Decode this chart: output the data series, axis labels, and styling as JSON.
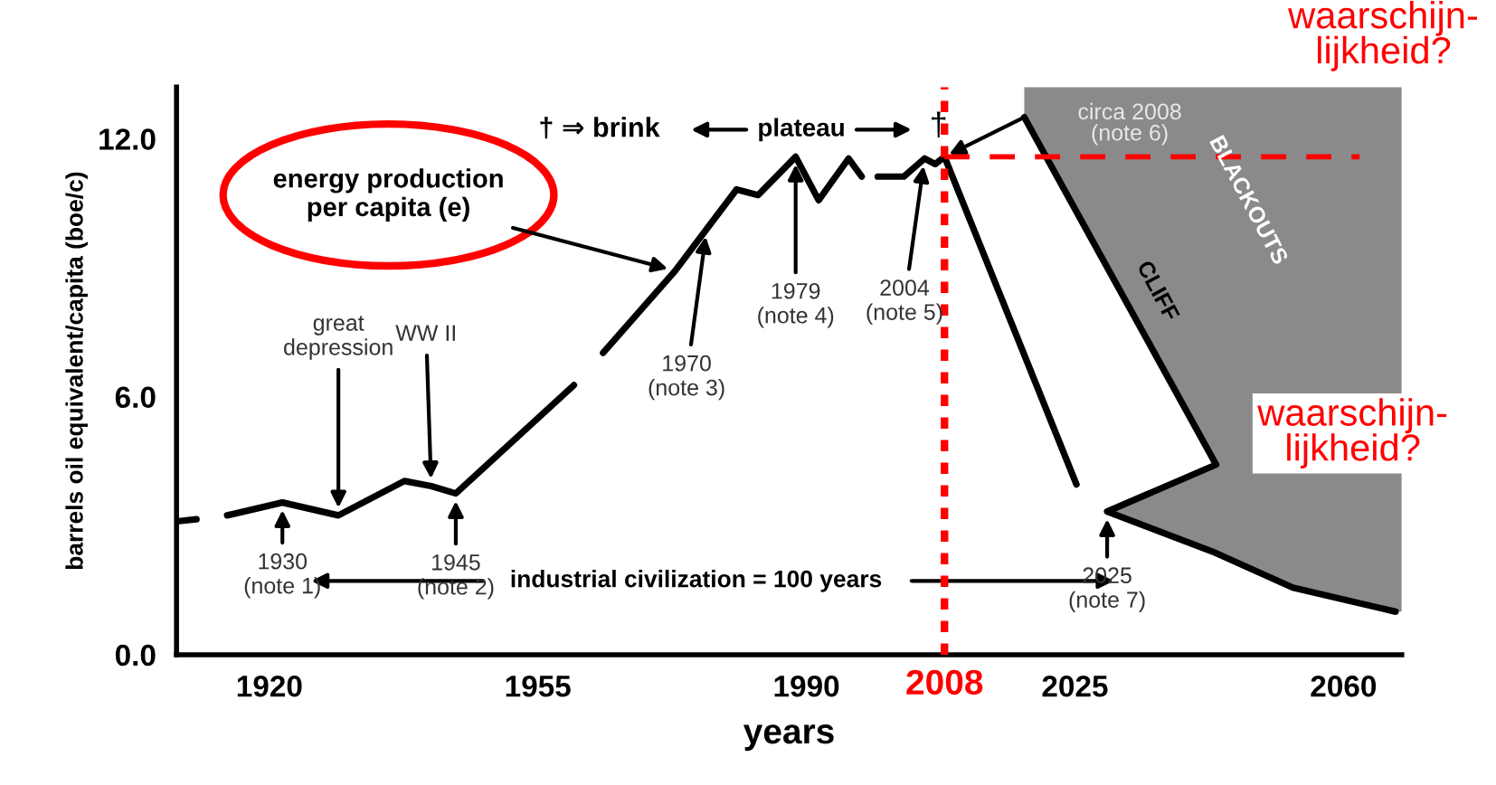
{
  "chart_data": {
    "type": "line",
    "xlabel": "years",
    "ylabel": "barrels oil equivalent/capita (boe/c)",
    "xlim": [
      1907.9,
      2067.6
    ],
    "ylim": [
      0,
      13.2
    ],
    "xticks": [
      1920,
      1955,
      1990,
      2025,
      2060
    ],
    "yticks": [
      {
        "value": 0,
        "label": "0.0"
      },
      {
        "value": 6,
        "label": "6.0"
      },
      {
        "value": 12,
        "label": "12.0"
      }
    ],
    "series": [
      {
        "color": "#000000",
        "x": [
          1907.9,
          1910.5,
          1911.5,
          1914.5,
          1921.7,
          1929.0,
          1937.6,
          1941.1,
          1944.3,
          1959.7,
          1961.5,
          1963.5,
          1972.9,
          1977.0,
          1980.9,
          1983.7,
          1988.6,
          1991.6,
          1995.5,
          1997.2,
          1998.3,
          1999.3,
          2002.7,
          2005.4,
          2006.8,
          2008.0,
          2025.2
        ],
        "values": [
          3.1,
          3.15,
          null,
          3.24,
          3.54,
          3.24,
          4.04,
          3.92,
          3.75,
          6.27,
          null,
          7.02,
          8.93,
          9.9,
          10.82,
          10.69,
          11.58,
          10.57,
          11.54,
          11.12,
          null,
          11.12,
          11.12,
          11.54,
          11.41,
          11.58,
          3.96
        ]
      },
      {
        "color": "#000000",
        "x": [
          2018.4,
          2043.4,
          2029.2,
          2042.9,
          2053.4,
          2066.8
        ],
        "values": [
          12.5,
          4.42,
          3.33,
          2.4,
          1.56,
          1.0
        ]
      },
      {
        "color": "#ff0000",
        "line_style": "dashed",
        "x": [
          2008.0,
          2062.1
        ],
        "values": [
          11.58,
          11.58
        ]
      }
    ],
    "ref_lines": [
      {
        "axis": "x",
        "value": 2008,
        "label": "2008",
        "color": "#ff0000",
        "line_style": "dotted"
      }
    ],
    "annotations": [
      {
        "text": "energy production\nper capita (e)",
        "x": 1972.9,
        "y": 8.93
      },
      {
        "text": "great\ndepression",
        "x": 1929.0,
        "y": 3.24
      },
      {
        "text": "WW II",
        "x": 1941.1,
        "y": 3.92
      },
      {
        "text": "1930\n(note 1)",
        "x": 1921.7,
        "y": 3.54
      },
      {
        "text": "1945\n(note 2)",
        "x": 1944.3,
        "y": 3.75
      },
      {
        "text": "1970\n(note 3)",
        "x": 1977.0,
        "y": 9.9
      },
      {
        "text": "1979\n(note 4)",
        "x": 1988.6,
        "y": 11.58
      },
      {
        "text": "2004\n(note 5)",
        "x": 2005.4,
        "y": 11.54
      },
      {
        "text": "2025\n(note 7)",
        "x": 2029.2,
        "y": 3.33
      },
      "circa 2008\n(note 6)",
      "† ⇒ brink",
      "plateau",
      "†",
      "industrial civilization = 100 years",
      "CLIFF",
      "BLACKOUTS",
      "waarschijn-\nlijkheid?",
      "waarschijn-\nlijkheid?"
    ]
  }
}
